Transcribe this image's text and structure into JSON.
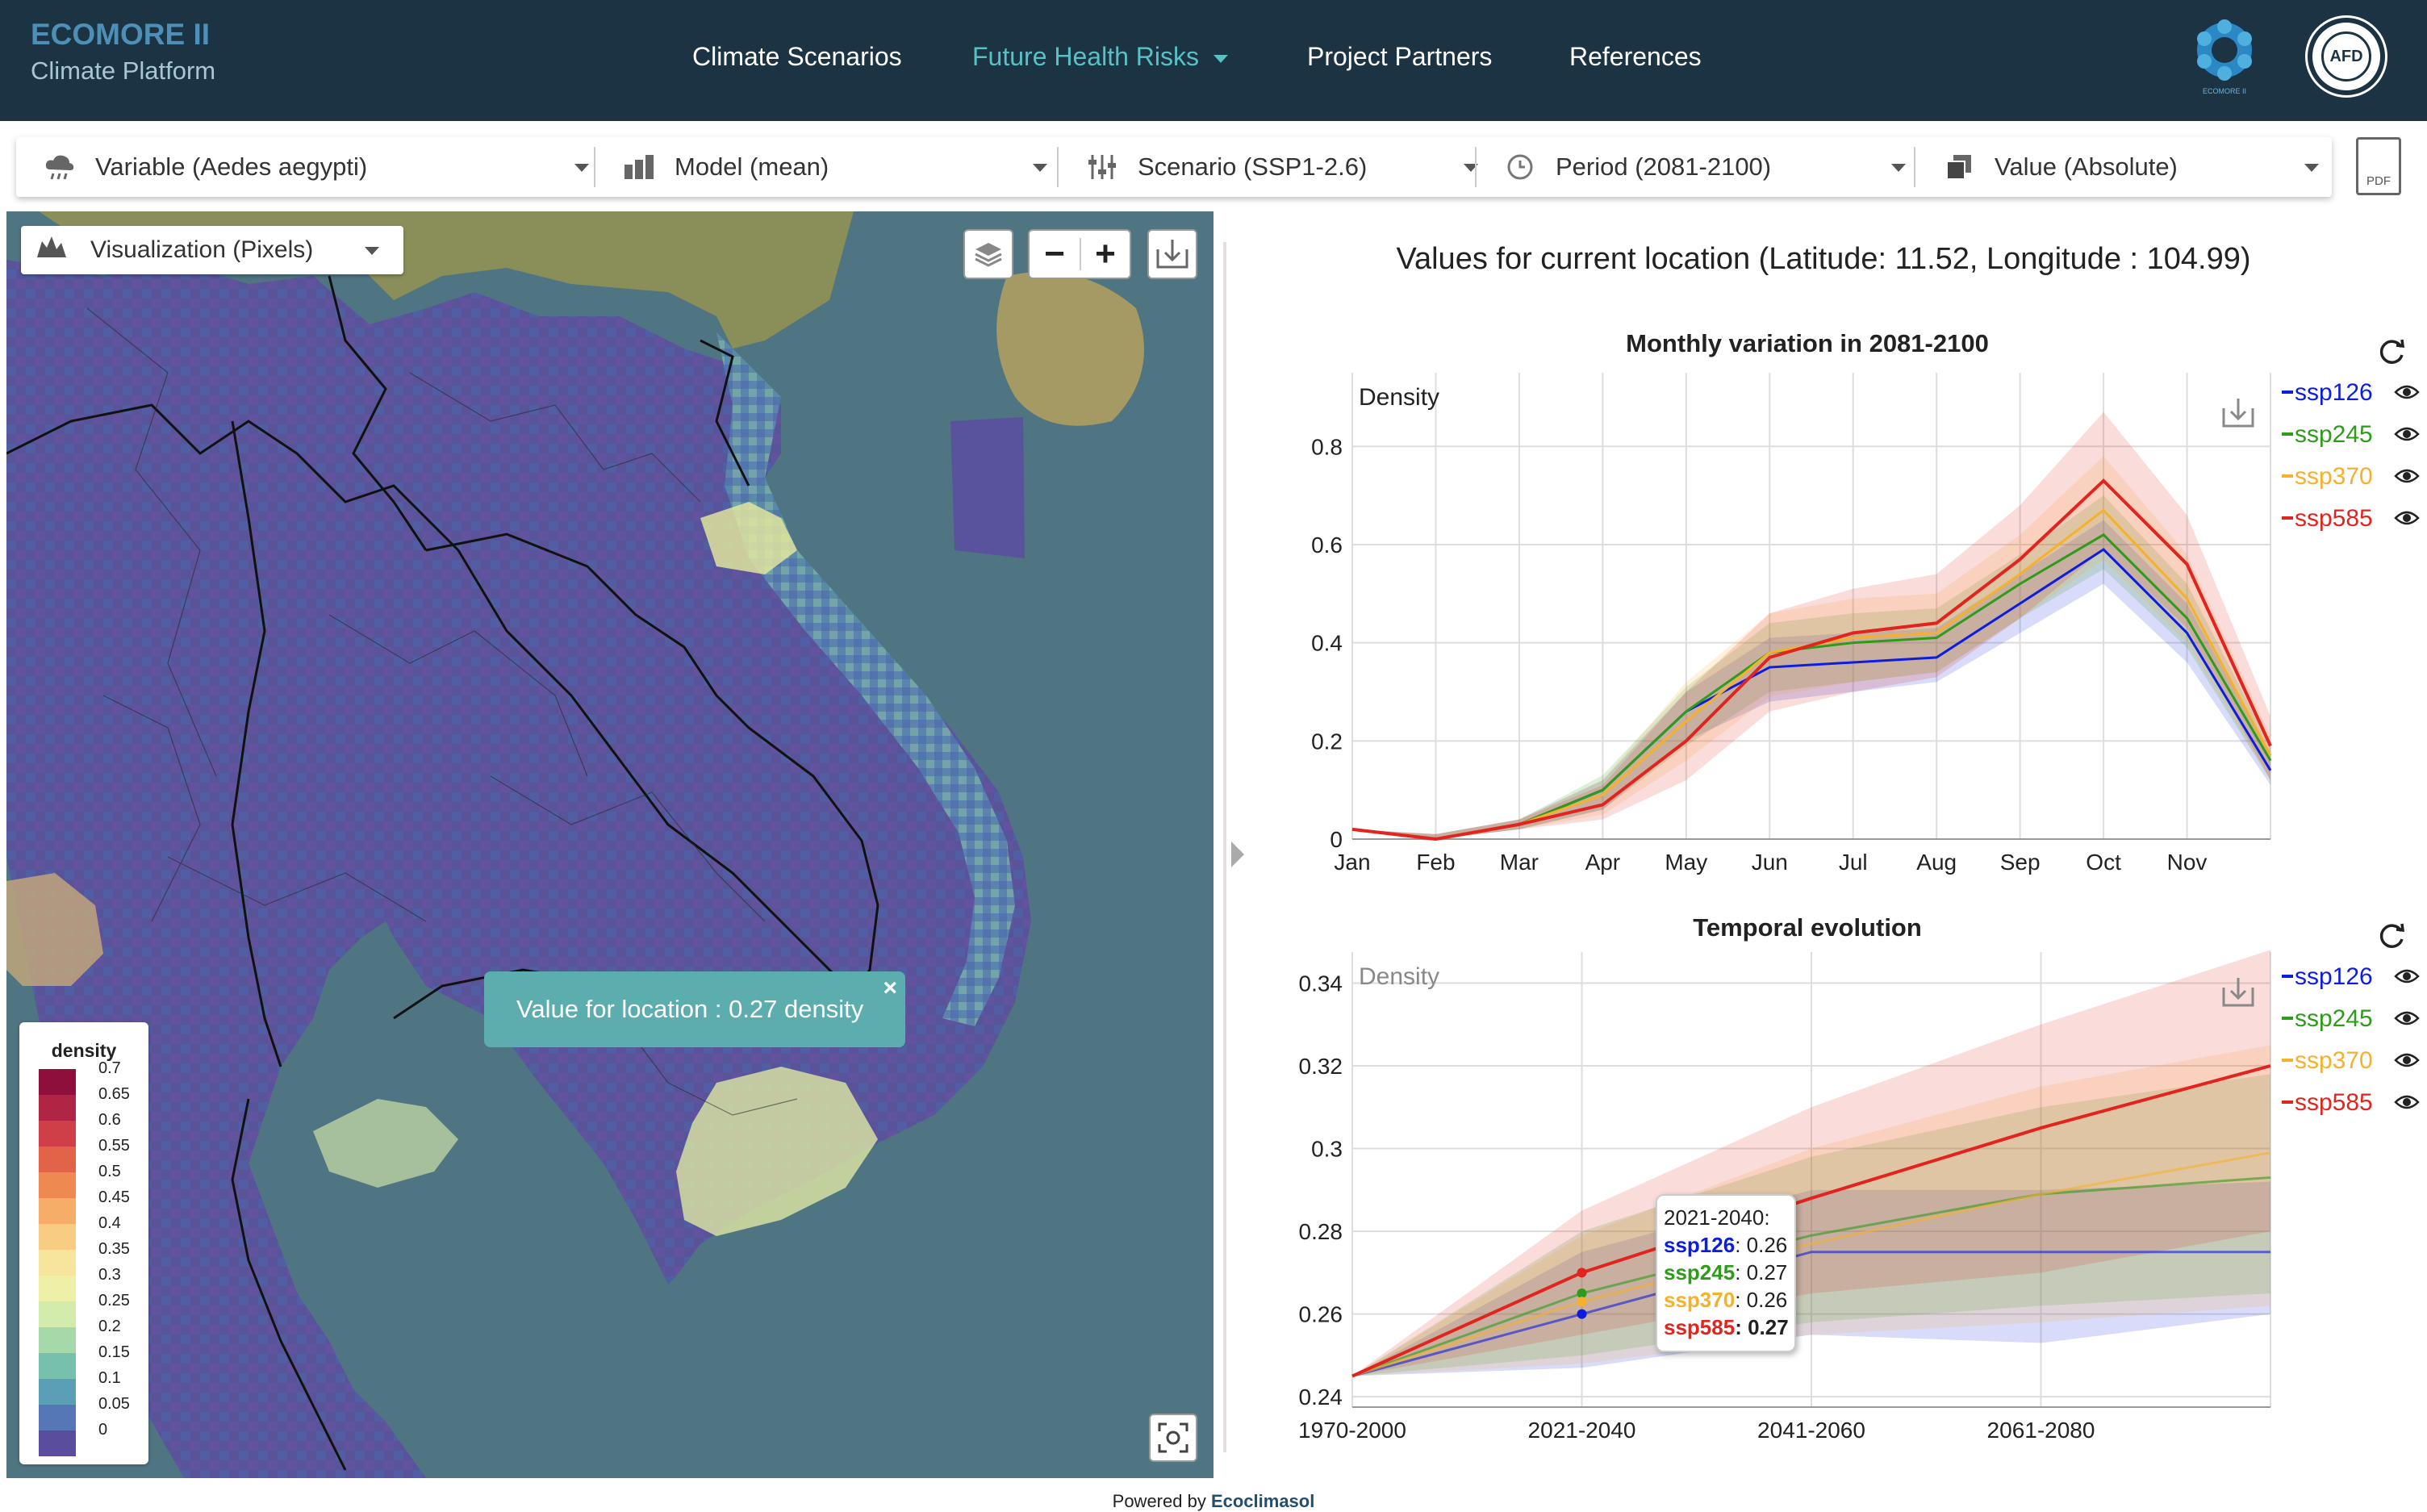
{
  "header": {
    "brand_title": "ECOMORE II",
    "brand_subtitle": "Climate Platform",
    "nav": [
      "Climate Scenarios",
      "Future Health Risks",
      "Project Partners",
      "References"
    ],
    "active_nav": "Future Health Risks",
    "logo_left_text": "ECOMORE II",
    "logo_right_text": "AFD"
  },
  "toolbar": {
    "variable": "Variable (Aedes aegypti)",
    "model": "Model (mean)",
    "scenario": "Scenario (SSP1-2.6)",
    "period": "Period (2081-2100)",
    "value": "Value (Absolute)",
    "pdf": "PDF"
  },
  "map": {
    "visualization": "Visualization (Pixels)",
    "popup": "Value for location : 0.27 density",
    "popup_close": "×",
    "legend_title": "density",
    "legend_values": [
      "0.7",
      "0.65",
      "0.6",
      "0.55",
      "0.5",
      "0.45",
      "0.4",
      "0.35",
      "0.3",
      "0.25",
      "0.2",
      "0.15",
      "0.1",
      "0.05",
      "0"
    ],
    "legend_colors": [
      "#8f0f3c",
      "#b02544",
      "#cf3f48",
      "#e26347",
      "#ee8951",
      "#f5ad68",
      "#f8cc83",
      "#f7e59e",
      "#eef0a7",
      "#d3ecab",
      "#a6d9aa",
      "#77c0ae",
      "#5b9fb6",
      "#5577b5",
      "#5b4d9e"
    ]
  },
  "panel": {
    "location_title": "Values for current location (Latitude: 11.52, Longitude : 104.99)",
    "series_colors": {
      "ssp126": "#0c1ce0",
      "ssp245": "#2e9b1a",
      "ssp370": "#f6b12c",
      "ssp585": "#e3241e"
    }
  },
  "chart_data": [
    {
      "type": "line",
      "title": "Monthly variation in 2081-2100",
      "ylabel": "Density",
      "xlabel": "",
      "categories": [
        "Jan",
        "Feb",
        "Mar",
        "Apr",
        "May",
        "Jun",
        "Jul",
        "Aug",
        "Sep",
        "Oct",
        "Nov",
        ""
      ],
      "yticks": [
        "0",
        "0.2",
        "0.4",
        "0.6",
        "0.8"
      ],
      "ylim": [
        0,
        0.95
      ],
      "grid": true,
      "legend": "right",
      "series": [
        {
          "name": "ssp126",
          "values": [
            0.02,
            0.0,
            0.03,
            0.1,
            0.26,
            0.35,
            0.36,
            0.37,
            0.48,
            0.59,
            0.42,
            0.14
          ]
        },
        {
          "name": "ssp245",
          "values": [
            0.02,
            0.0,
            0.03,
            0.1,
            0.26,
            0.38,
            0.4,
            0.41,
            0.52,
            0.62,
            0.45,
            0.16
          ]
        },
        {
          "name": "ssp370",
          "values": [
            0.02,
            0.0,
            0.03,
            0.09,
            0.24,
            0.38,
            0.41,
            0.42,
            0.54,
            0.67,
            0.49,
            0.17
          ]
        },
        {
          "name": "ssp585",
          "values": [
            0.02,
            0.0,
            0.03,
            0.07,
            0.2,
            0.37,
            0.42,
            0.44,
            0.57,
            0.73,
            0.56,
            0.19
          ]
        }
      ],
      "bands": [
        {
          "name": "ssp126",
          "lower": [
            0.02,
            0.0,
            0.02,
            0.06,
            0.2,
            0.28,
            0.3,
            0.32,
            0.42,
            0.52,
            0.36,
            0.11
          ],
          "upper": [
            0.02,
            0.01,
            0.04,
            0.12,
            0.3,
            0.41,
            0.42,
            0.43,
            0.54,
            0.65,
            0.48,
            0.17
          ]
        },
        {
          "name": "ssp245",
          "lower": [
            0.02,
            0.0,
            0.02,
            0.06,
            0.19,
            0.3,
            0.32,
            0.34,
            0.45,
            0.55,
            0.39,
            0.12
          ],
          "upper": [
            0.02,
            0.01,
            0.04,
            0.13,
            0.31,
            0.44,
            0.46,
            0.47,
            0.58,
            0.7,
            0.52,
            0.19
          ]
        },
        {
          "name": "ssp370",
          "lower": [
            0.02,
            0.0,
            0.02,
            0.05,
            0.16,
            0.29,
            0.32,
            0.34,
            0.45,
            0.57,
            0.4,
            0.12
          ],
          "upper": [
            0.02,
            0.01,
            0.04,
            0.12,
            0.32,
            0.46,
            0.49,
            0.5,
            0.62,
            0.78,
            0.58,
            0.21
          ]
        },
        {
          "name": "ssp585",
          "lower": [
            0.02,
            0.0,
            0.02,
            0.04,
            0.12,
            0.26,
            0.3,
            0.33,
            0.45,
            0.59,
            0.43,
            0.12
          ],
          "upper": [
            0.02,
            0.01,
            0.04,
            0.11,
            0.3,
            0.46,
            0.51,
            0.54,
            0.68,
            0.87,
            0.66,
            0.25
          ]
        }
      ]
    },
    {
      "type": "line",
      "title": "Temporal evolution",
      "ylabel": "Density",
      "xlabel": "",
      "categories": [
        "1970-2000",
        "2021-2040",
        "2041-2060",
        "2061-2080",
        ""
      ],
      "yticks": [
        "0.24",
        "0.26",
        "0.28",
        "0.3",
        "0.32",
        "0.34"
      ],
      "ylim": [
        0.2375,
        0.3475
      ],
      "grid": true,
      "legend": "right",
      "series": [
        {
          "name": "ssp126",
          "values": [
            0.245,
            0.26,
            0.275,
            0.275,
            0.275
          ]
        },
        {
          "name": "ssp245",
          "values": [
            0.245,
            0.265,
            0.279,
            0.289,
            0.293
          ]
        },
        {
          "name": "ssp370",
          "values": [
            0.245,
            0.263,
            0.277,
            0.289,
            0.299
          ]
        },
        {
          "name": "ssp585",
          "values": [
            0.245,
            0.27,
            0.288,
            0.305,
            0.32
          ]
        }
      ],
      "bands": [
        {
          "name": "ssp126",
          "lower": [
            0.245,
            0.247,
            0.255,
            0.253,
            0.26
          ],
          "upper": [
            0.245,
            0.275,
            0.29,
            0.29,
            0.292
          ]
        },
        {
          "name": "ssp245",
          "lower": [
            0.245,
            0.25,
            0.258,
            0.262,
            0.265
          ],
          "upper": [
            0.245,
            0.28,
            0.298,
            0.31,
            0.318
          ]
        },
        {
          "name": "ssp370",
          "lower": [
            0.245,
            0.248,
            0.255,
            0.258,
            0.262
          ],
          "upper": [
            0.245,
            0.279,
            0.3,
            0.315,
            0.325
          ]
        },
        {
          "name": "ssp585",
          "lower": [
            0.245,
            0.255,
            0.265,
            0.27,
            0.28
          ],
          "upper": [
            0.245,
            0.285,
            0.31,
            0.33,
            0.348
          ]
        }
      ],
      "tooltip": {
        "title": "2021-2040:",
        "rows": [
          {
            "name": "ssp126",
            "value": "0.26"
          },
          {
            "name": "ssp245",
            "value": "0.27"
          },
          {
            "name": "ssp370",
            "value": "0.26"
          },
          {
            "name": "ssp585",
            "value": "0.27"
          }
        ]
      }
    }
  ],
  "footer": {
    "prefix": "Powered by",
    "brand": "Ecoclimasol"
  }
}
